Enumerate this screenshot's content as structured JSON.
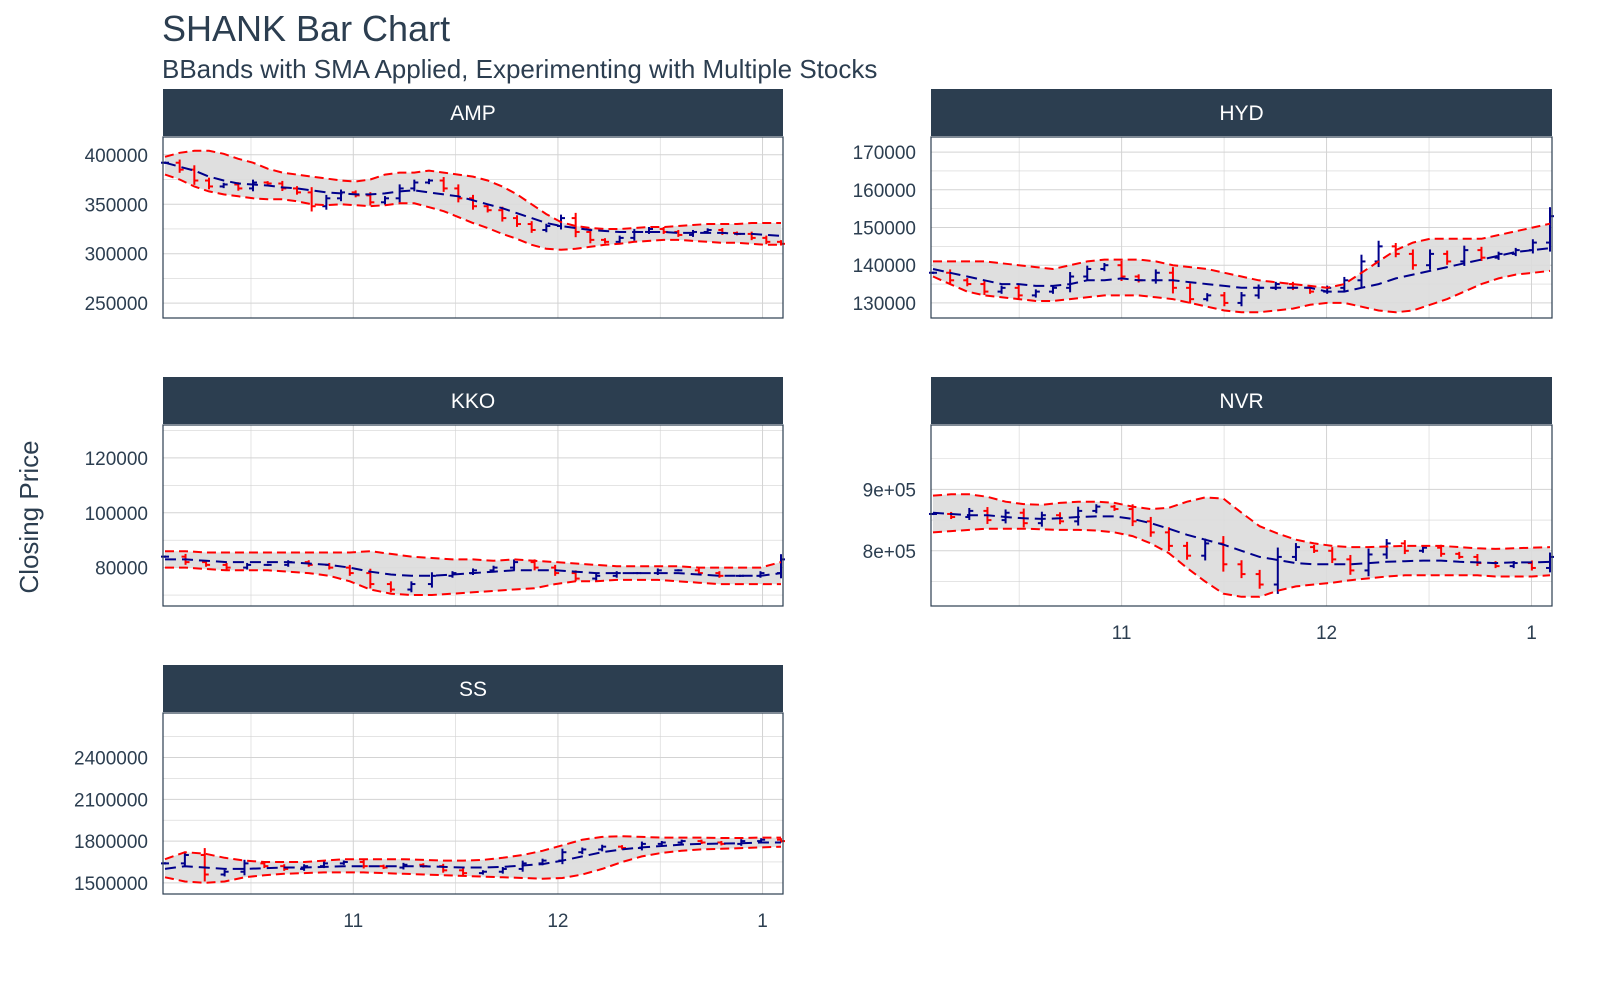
{
  "title": "SHANK Bar Chart",
  "subtitle": "BBands with SMA Applied, Experimenting with Multiple Stocks",
  "chart_data": {
    "type": "faceted-ohlc-bar",
    "title": "SHANK Bar Chart",
    "subtitle": "BBands with SMA Applied, Experimenting with Multiple Stocks",
    "ylabel": "Closing Price",
    "xlabel": "",
    "x_tick_labels": [
      "11",
      "12",
      "1"
    ],
    "x_ticks_month_index": [
      1,
      2,
      3
    ],
    "x_range_month_index": [
      0.07,
      3.1
    ],
    "colors": {
      "up": "#00008b",
      "down": "#ff0000",
      "band_line": "#ff0000",
      "sma_line": "#00008b",
      "band_fill": "#dcdcdc",
      "strip": "#2c3e50",
      "grid": "#d3d3d3"
    },
    "panels": [
      {
        "name": "AMP",
        "ylim": [
          235000,
          418000
        ],
        "y_ticks": [
          250000,
          300000,
          350000,
          400000
        ],
        "y_tick_labels": [
          "250000",
          "300000",
          "350000",
          "400000"
        ],
        "close": [
          392000,
          385000,
          374000,
          368000,
          370000,
          366000,
          372000,
          371000,
          366000,
          362000,
          348000,
          356000,
          362000,
          359000,
          352000,
          356000,
          366000,
          372000,
          374000,
          366000,
          356000,
          348000,
          344000,
          336000,
          330000,
          324000,
          328000,
          336000,
          322000,
          314000,
          312000,
          316000,
          322000,
          325000,
          322000,
          319000,
          322000,
          324000,
          321000,
          320000,
          316000,
          312000,
          310000
        ],
        "sma": [
          392000,
          388000,
          384000,
          378000,
          374000,
          371000,
          370000,
          369000,
          367000,
          366000,
          364000,
          362000,
          361000,
          360000,
          360000,
          361000,
          363000,
          364000,
          362000,
          360000,
          358000,
          354000,
          350000,
          346000,
          341000,
          336000,
          331000,
          328000,
          326000,
          324000,
          323000,
          322000,
          322000,
          322000,
          322000,
          321000,
          321000,
          321000,
          321000,
          320000,
          320000,
          319000,
          318000
        ],
        "upper": [
          398000,
          402000,
          404000,
          404000,
          401000,
          396000,
          392000,
          386000,
          382000,
          380000,
          378000,
          376000,
          374000,
          373000,
          375000,
          380000,
          382000,
          382000,
          384000,
          382000,
          380000,
          378000,
          374000,
          368000,
          360000,
          350000,
          340000,
          332000,
          328000,
          326000,
          325000,
          325000,
          326000,
          327000,
          327000,
          328000,
          329000,
          330000,
          330000,
          330000,
          331000,
          331000,
          331000
        ],
        "lower": [
          380000,
          375000,
          368000,
          363000,
          360000,
          358000,
          356000,
          355000,
          355000,
          353000,
          350000,
          349000,
          350000,
          349000,
          348000,
          349000,
          351000,
          351000,
          347000,
          343000,
          337000,
          331000,
          326000,
          320000,
          315000,
          309000,
          305000,
          304000,
          305000,
          307000,
          309000,
          310000,
          312000,
          313000,
          314000,
          314000,
          313000,
          312000,
          311000,
          311000,
          310000,
          309000,
          309000
        ]
      },
      {
        "name": "HYD",
        "ylim": [
          126000,
          174000
        ],
        "y_ticks": [
          130000,
          140000,
          150000,
          160000,
          170000
        ],
        "y_tick_labels": [
          "130000",
          "140000",
          "150000",
          "160000",
          "170000"
        ],
        "close": [
          138000,
          136000,
          135000,
          133000,
          134000,
          132000,
          133000,
          134000,
          137000,
          139000,
          140000,
          137000,
          136000,
          138000,
          134000,
          131000,
          132000,
          130000,
          132000,
          134000,
          135000,
          134000,
          133000,
          134000,
          136000,
          141000,
          145000,
          143000,
          140000,
          143000,
          141000,
          144000,
          142000,
          143000,
          144000,
          146000,
          153000
        ],
        "sma": [
          139000,
          138000,
          137000,
          136000,
          135000,
          135000,
          134500,
          134500,
          135000,
          136000,
          136000,
          136500,
          136000,
          136000,
          136000,
          135500,
          135000,
          134500,
          134000,
          134000,
          134000,
          134000,
          134000,
          133000,
          133000,
          134000,
          135000,
          136500,
          137500,
          138500,
          139500,
          140500,
          141500,
          142500,
          143500,
          144000,
          144500
        ],
        "upper": [
          141000,
          141000,
          141000,
          141000,
          140500,
          140000,
          139500,
          139000,
          140000,
          141000,
          141500,
          141500,
          141500,
          141000,
          140000,
          139500,
          139000,
          138000,
          137000,
          136000,
          135500,
          135000,
          134500,
          134000,
          135000,
          138000,
          141000,
          144000,
          146000,
          147000,
          147000,
          147000,
          147000,
          148000,
          149000,
          150000,
          151000
        ],
        "lower": [
          137000,
          135000,
          133000,
          132000,
          131500,
          131000,
          130500,
          130500,
          131000,
          131500,
          132000,
          132000,
          132000,
          131500,
          131000,
          130000,
          129000,
          128000,
          127500,
          127500,
          128000,
          128500,
          129500,
          130000,
          130000,
          129000,
          128000,
          127500,
          128000,
          129500,
          131000,
          133000,
          135000,
          136500,
          137500,
          138000,
          138500
        ]
      },
      {
        "name": "KKO",
        "ylim": [
          66000,
          132000
        ],
        "y_ticks": [
          80000,
          100000,
          120000
        ],
        "y_tick_labels": [
          "80000",
          "100000",
          "120000"
        ],
        "close": [
          84000,
          82000,
          81000,
          80000,
          81000,
          81000,
          82000,
          81000,
          80000,
          78000,
          74000,
          72000,
          74000,
          77000,
          78000,
          79000,
          80000,
          82000,
          80000,
          78000,
          76000,
          77000,
          78000,
          78000,
          79000,
          79000,
          78000,
          77000,
          77000,
          78000,
          83000
        ],
        "sma": [
          83000,
          83000,
          82500,
          82000,
          82000,
          82000,
          82000,
          81500,
          81000,
          80000,
          78500,
          77500,
          77000,
          77000,
          77500,
          78000,
          78500,
          79000,
          79000,
          79000,
          78500,
          78000,
          78000,
          78000,
          78000,
          78000,
          77500,
          77000,
          77000,
          77000,
          78000
        ],
        "upper": [
          86000,
          86000,
          85500,
          85500,
          85500,
          85500,
          85500,
          85500,
          85500,
          85500,
          86000,
          85000,
          84000,
          83500,
          83000,
          83000,
          82500,
          83000,
          82500,
          82000,
          81500,
          81000,
          80500,
          80500,
          80500,
          80500,
          80000,
          80000,
          80000,
          80000,
          82000
        ],
        "lower": [
          80000,
          80000,
          79500,
          79000,
          79000,
          79000,
          78500,
          78000,
          77000,
          75000,
          72000,
          70500,
          70000,
          70000,
          70500,
          71000,
          71500,
          72000,
          72500,
          74000,
          75000,
          75000,
          75500,
          75500,
          75500,
          75000,
          74500,
          74000,
          74000,
          74000,
          74000
        ]
      },
      {
        "name": "NVR",
        "ylim": [
          710000,
          1005000
        ],
        "y_ticks": [
          800000,
          900000
        ],
        "y_tick_labels": [
          "8e+05",
          "9e+05"
        ],
        "close": [
          860000,
          855000,
          865000,
          850000,
          862000,
          845000,
          858000,
          848000,
          865000,
          872000,
          868000,
          848000,
          830000,
          808000,
          792000,
          812000,
          778000,
          762000,
          745000,
          790000,
          806000,
          800000,
          786000,
          768000,
          794000,
          812000,
          800000,
          805000,
          795000,
          790000,
          780000,
          775000,
          780000,
          772000,
          790000
        ],
        "sma": [
          862000,
          860000,
          858000,
          858000,
          855000,
          853000,
          852000,
          853000,
          855000,
          856000,
          856000,
          852000,
          845000,
          836000,
          826000,
          818000,
          810000,
          800000,
          790000,
          785000,
          780000,
          778000,
          778000,
          778000,
          780000,
          782000,
          783000,
          784000,
          784000,
          782000,
          781000,
          780000,
          781000,
          781000,
          782000
        ],
        "upper": [
          890000,
          892000,
          892000,
          888000,
          880000,
          876000,
          875000,
          878000,
          880000,
          880000,
          878000,
          872000,
          868000,
          870000,
          880000,
          887000,
          885000,
          862000,
          840000,
          828000,
          818000,
          812000,
          808000,
          806000,
          806000,
          807000,
          808000,
          808000,
          808000,
          806000,
          804000,
          803000,
          804000,
          805000,
          806000
        ],
        "lower": [
          830000,
          832000,
          834000,
          836000,
          836000,
          836000,
          835000,
          834000,
          834000,
          833000,
          830000,
          824000,
          812000,
          796000,
          772000,
          750000,
          730000,
          725000,
          725000,
          735000,
          742000,
          745000,
          748000,
          752000,
          755000,
          758000,
          760000,
          760000,
          760000,
          760000,
          760000,
          758000,
          758000,
          758000,
          760000
        ]
      },
      {
        "name": "SS",
        "ylim": [
          1420000,
          2720000
        ],
        "y_ticks": [
          1500000,
          1800000,
          2100000,
          2400000
        ],
        "y_tick_labels": [
          "1500000",
          "1800000",
          "2100000",
          "2400000"
        ],
        "close": [
          1640000,
          1700000,
          1560000,
          1580000,
          1640000,
          1620000,
          1600000,
          1620000,
          1640000,
          1650000,
          1620000,
          1610000,
          1630000,
          1620000,
          1590000,
          1570000,
          1580000,
          1600000,
          1640000,
          1660000,
          1720000,
          1740000,
          1760000,
          1750000,
          1780000,
          1790000,
          1800000,
          1790000,
          1780000,
          1800000,
          1810000,
          1800000
        ],
        "sma": [
          1600000,
          1620000,
          1610000,
          1600000,
          1600000,
          1605000,
          1610000,
          1610000,
          1615000,
          1620000,
          1620000,
          1620000,
          1620000,
          1620000,
          1615000,
          1610000,
          1610000,
          1615000,
          1625000,
          1635000,
          1660000,
          1690000,
          1720000,
          1740000,
          1755000,
          1765000,
          1775000,
          1780000,
          1782000,
          1785000,
          1790000,
          1790000
        ],
        "upper": [
          1670000,
          1720000,
          1710000,
          1680000,
          1660000,
          1650000,
          1650000,
          1650000,
          1660000,
          1670000,
          1670000,
          1670000,
          1670000,
          1665000,
          1660000,
          1660000,
          1665000,
          1680000,
          1700000,
          1730000,
          1770000,
          1810000,
          1830000,
          1835000,
          1830000,
          1825000,
          1825000,
          1825000,
          1822000,
          1822000,
          1825000,
          1825000
        ],
        "lower": [
          1540000,
          1510000,
          1500000,
          1510000,
          1540000,
          1555000,
          1565000,
          1570000,
          1575000,
          1575000,
          1575000,
          1570000,
          1565000,
          1560000,
          1555000,
          1550000,
          1545000,
          1540000,
          1535000,
          1530000,
          1535000,
          1560000,
          1600000,
          1650000,
          1690000,
          1715000,
          1730000,
          1740000,
          1745000,
          1750000,
          1755000,
          1760000
        ]
      }
    ]
  }
}
